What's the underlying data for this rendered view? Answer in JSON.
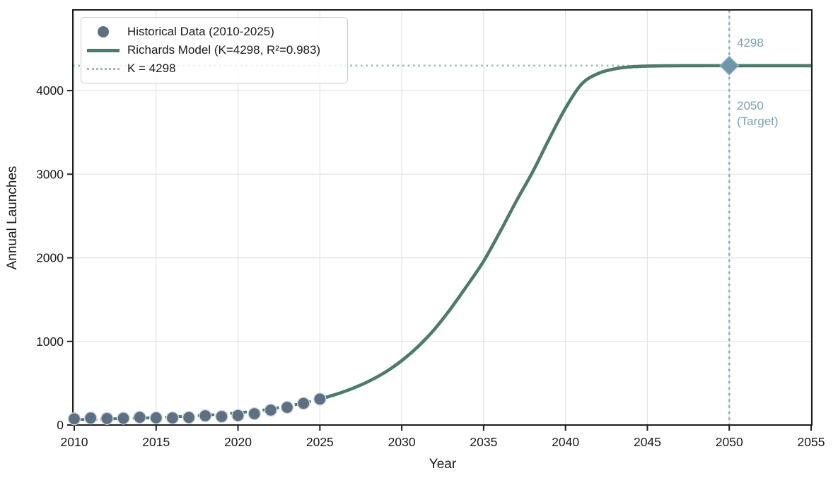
{
  "chart_data": {
    "type": "line",
    "title": "",
    "xlabel": "Year",
    "ylabel": "Annual Launches",
    "xlim": [
      2009.9,
      2055
    ],
    "ylim": [
      0,
      4965
    ],
    "xticks": [
      2010,
      2015,
      2020,
      2025,
      2030,
      2035,
      2040,
      2045,
      2050,
      2055
    ],
    "yticks": [
      0,
      1000,
      2000,
      3000,
      4000
    ],
    "grid": true,
    "legend": {
      "position": "upper-left",
      "items": [
        {
          "label": "Historical Data (2010-2025)",
          "swatch": "circle-marker"
        },
        {
          "label": "Richards Model (K=4298, R²=0.983)",
          "swatch": "solid-line"
        },
        {
          "label": "K = 4298",
          "swatch": "dotted-line"
        }
      ]
    },
    "series": [
      {
        "name": "Historical Data (2010-2025)",
        "type": "scatter",
        "x": [
          2010,
          2011,
          2012,
          2013,
          2014,
          2015,
          2016,
          2017,
          2018,
          2019,
          2020,
          2021,
          2022,
          2023,
          2024,
          2025
        ],
        "y": [
          74,
          84,
          78,
          81,
          92,
          86,
          85,
          90,
          111,
          102,
          114,
          135,
          178,
          211,
          259,
          310
        ]
      },
      {
        "name": "Richards Model (K=4298, R²=0.983)",
        "type": "line",
        "dashed_until_x": 2025,
        "x": [
          2010,
          2011,
          2012,
          2013,
          2014,
          2015,
          2016,
          2017,
          2018,
          2019,
          2020,
          2021,
          2022,
          2023,
          2024,
          2025,
          2026,
          2027,
          2028,
          2029,
          2030,
          2031,
          2032,
          2033,
          2034,
          2035,
          2036,
          2037,
          2038,
          2039,
          2040,
          2041,
          2042,
          2043,
          2044,
          2045,
          2046,
          2048,
          2050,
          2052,
          2055
        ],
        "y": [
          64,
          68,
          72,
          77,
          83,
          89,
          97,
          106,
          117,
          130,
          146,
          166,
          192,
          226,
          263,
          310,
          368,
          438,
          524,
          633,
          770,
          940,
          1145,
          1395,
          1670,
          1960,
          2310,
          2680,
          3030,
          3420,
          3790,
          4080,
          4205,
          4260,
          4284,
          4293,
          4296,
          4298,
          4298,
          4298,
          4298
        ]
      },
      {
        "name": "K = 4298",
        "type": "hline",
        "y": 4298
      }
    ],
    "vline": {
      "x": 2050
    },
    "target_marker": {
      "x": 2050,
      "y": 4298,
      "shape": "diamond"
    },
    "annotations": {
      "capacity": {
        "text": "4298"
      },
      "target": {
        "line1": "2050",
        "line2": "(Target)"
      }
    },
    "colors": {
      "scatter_fill": "#5d6f82",
      "scatter_edge": "#ccd4da",
      "model_line": "#4e7a6b",
      "k_line": "#9fbab0",
      "target_line": "#8fb0bf",
      "diamond_fill": "#6e96a9",
      "diamond_edge": "#8fb0bf",
      "annotation_text": "#7da0b2",
      "grid": "#e5e6e8",
      "spine": "#1c1c1c",
      "text": "#1a1a1a"
    }
  }
}
